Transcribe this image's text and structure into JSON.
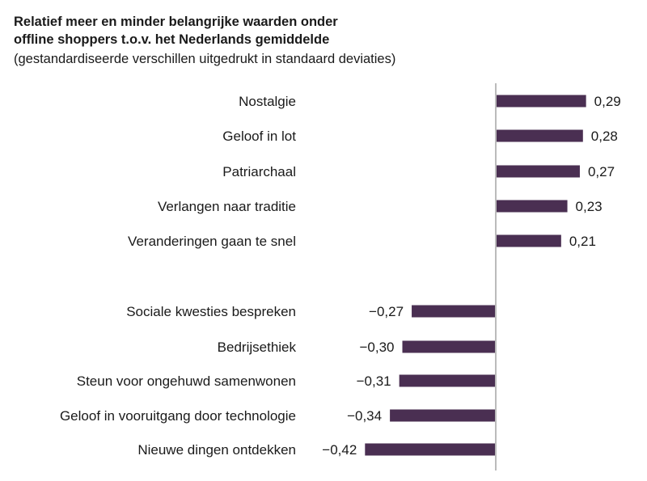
{
  "chart_data": {
    "type": "bar",
    "orientation": "horizontal",
    "title_line1": "Relatief meer en minder belangrijke waarden onder",
    "title_line2": "offline shoppers t.o.v. het Nederlands gemiddelde",
    "subtitle": "(gestandardiseerde verschillen uitgedrukt in standaard deviaties)",
    "categories": [
      "Nostalgie",
      "Geloof in lot",
      "Patriarchaal",
      "Verlangen naar traditie",
      "Veranderingen gaan te snel",
      "Sociale kwesties bespreken",
      "Bedrijsethiek",
      "Steun voor ongehuwd samenwonen",
      "Geloof in vooruitgang door technologie",
      "Nieuwe dingen ontdekken"
    ],
    "values": [
      0.29,
      0.28,
      0.27,
      0.23,
      0.21,
      -0.27,
      -0.3,
      -0.31,
      -0.34,
      -0.42
    ],
    "value_labels": [
      "0,29",
      "0,28",
      "0,27",
      "0,23",
      "0,21",
      "−0,27",
      "−0,30",
      "−0,31",
      "−0,34",
      "−0,42"
    ],
    "bar_color": "#4a2f52",
    "axis_color": "#bbbbbb",
    "grid": false,
    "legend": "none"
  }
}
